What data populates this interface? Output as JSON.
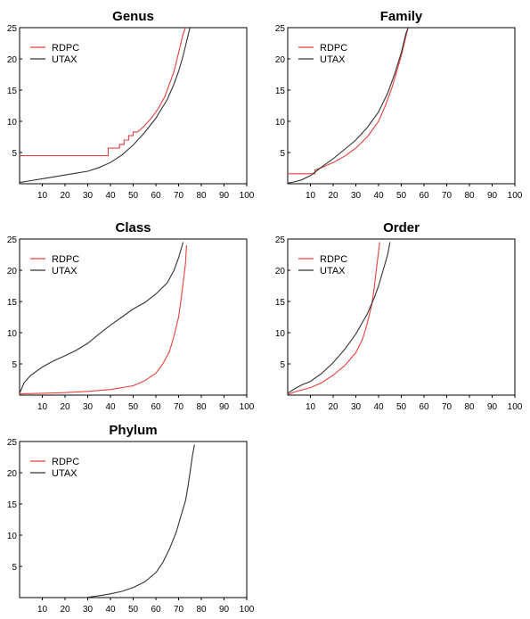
{
  "chart_data": [
    {
      "type": "line",
      "title": "Genus",
      "xlim": [
        0,
        100
      ],
      "ylim": [
        0,
        25
      ],
      "xticks": [
        "10",
        "20",
        "30",
        "40",
        "50",
        "60",
        "70",
        "80",
        "90",
        "100"
      ],
      "yticks": [
        "5",
        "10",
        "15",
        "20",
        "25"
      ],
      "legend": {
        "placement": "top-left",
        "entries": [
          "RDPC",
          "UTAX"
        ]
      },
      "series": [
        {
          "name": "RDPC",
          "color": "#e8403c",
          "step": true,
          "points": [
            [
              0,
              4.5
            ],
            [
              39,
              4.5
            ],
            [
              39,
              5.7
            ],
            [
              44,
              5.7
            ],
            [
              44,
              6.3
            ],
            [
              46,
              6.3
            ],
            [
              46,
              7
            ],
            [
              48,
              7
            ],
            [
              48,
              7.7
            ],
            [
              50,
              7.7
            ],
            [
              50,
              8.3
            ],
            [
              52,
              8.3
            ],
            [
              55,
              9.3
            ],
            [
              58,
              10.5
            ],
            [
              61,
              12
            ],
            [
              64,
              14
            ],
            [
              66,
              16
            ],
            [
              68,
              18
            ],
            [
              70,
              21
            ],
            [
              72,
              24
            ],
            [
              73,
              25
            ]
          ]
        },
        {
          "name": "UTAX",
          "color": "#333333",
          "step": false,
          "points": [
            [
              0,
              0.2
            ],
            [
              5,
              0.5
            ],
            [
              10,
              0.8
            ],
            [
              15,
              1.1
            ],
            [
              20,
              1.4
            ],
            [
              25,
              1.7
            ],
            [
              30,
              2
            ],
            [
              35,
              2.6
            ],
            [
              40,
              3.4
            ],
            [
              45,
              4.6
            ],
            [
              50,
              6.2
            ],
            [
              55,
              8.2
            ],
            [
              60,
              10.5
            ],
            [
              65,
              13.5
            ],
            [
              68,
              16
            ],
            [
              70,
              18
            ],
            [
              72,
              20.5
            ],
            [
              74,
              23.5
            ],
            [
              75,
              25
            ]
          ]
        }
      ]
    },
    {
      "type": "line",
      "title": "Family",
      "xlim": [
        0,
        100
      ],
      "ylim": [
        0,
        25
      ],
      "xticks": [
        "10",
        "20",
        "30",
        "40",
        "50",
        "60",
        "70",
        "80",
        "90",
        "100"
      ],
      "yticks": [
        "5",
        "10",
        "15",
        "20",
        "25"
      ],
      "legend": {
        "placement": "top-left",
        "entries": [
          "RDPC",
          "UTAX"
        ]
      },
      "series": [
        {
          "name": "RDPC",
          "color": "#e8403c",
          "step": true,
          "points": [
            [
              0,
              1.6
            ],
            [
              12,
              1.6
            ],
            [
              12,
              2.2
            ],
            [
              15,
              2.6
            ],
            [
              20,
              3.4
            ],
            [
              25,
              4.4
            ],
            [
              30,
              5.7
            ],
            [
              35,
              7.5
            ],
            [
              40,
              10
            ],
            [
              43,
              12.5
            ],
            [
              46,
              15.5
            ],
            [
              48,
              18
            ],
            [
              50,
              20.5
            ],
            [
              52,
              23.5
            ],
            [
              53,
              25
            ]
          ]
        },
        {
          "name": "UTAX",
          "color": "#333333",
          "step": false,
          "points": [
            [
              0,
              0.1
            ],
            [
              3,
              0.3
            ],
            [
              6,
              0.6
            ],
            [
              10,
              1.3
            ],
            [
              15,
              2.7
            ],
            [
              20,
              4
            ],
            [
              25,
              5.5
            ],
            [
              30,
              7
            ],
            [
              35,
              9
            ],
            [
              40,
              11.5
            ],
            [
              44,
              14.5
            ],
            [
              47,
              17.5
            ],
            [
              50,
              21
            ],
            [
              52,
              24
            ],
            [
              53,
              25
            ]
          ]
        }
      ]
    },
    {
      "type": "line",
      "title": "Class",
      "xlim": [
        0,
        100
      ],
      "ylim": [
        0,
        25
      ],
      "xticks": [
        "10",
        "20",
        "30",
        "40",
        "50",
        "60",
        "70",
        "80",
        "90",
        "100"
      ],
      "yticks": [
        "5",
        "10",
        "15",
        "20",
        "25"
      ],
      "legend": {
        "placement": "top-left",
        "entries": [
          "RDPC",
          "UTAX"
        ]
      },
      "series": [
        {
          "name": "RDPC",
          "color": "#e8403c",
          "step": false,
          "points": [
            [
              0,
              0.2
            ],
            [
              10,
              0.3
            ],
            [
              20,
              0.4
            ],
            [
              30,
              0.6
            ],
            [
              40,
              0.9
            ],
            [
              50,
              1.5
            ],
            [
              55,
              2.3
            ],
            [
              60,
              3.5
            ],
            [
              63,
              5
            ],
            [
              66,
              7
            ],
            [
              68,
              9.5
            ],
            [
              70,
              12.5
            ],
            [
              71,
              15
            ],
            [
              72,
              18
            ],
            [
              73,
              21
            ],
            [
              73.5,
              24
            ]
          ]
        },
        {
          "name": "UTAX",
          "color": "#333333",
          "step": false,
          "points": [
            [
              0,
              0.3
            ],
            [
              2,
              2
            ],
            [
              5,
              3.2
            ],
            [
              10,
              4.5
            ],
            [
              15,
              5.5
            ],
            [
              20,
              6.3
            ],
            [
              25,
              7.2
            ],
            [
              30,
              8.3
            ],
            [
              35,
              9.8
            ],
            [
              40,
              11.2
            ],
            [
              45,
              12.5
            ],
            [
              50,
              13.8
            ],
            [
              55,
              14.8
            ],
            [
              60,
              16.2
            ],
            [
              65,
              18
            ],
            [
              68,
              20
            ],
            [
              70,
              22
            ],
            [
              72,
              24.5
            ]
          ]
        }
      ]
    },
    {
      "type": "line",
      "title": "Order",
      "xlim": [
        0,
        100
      ],
      "ylim": [
        0,
        25
      ],
      "xticks": [
        "10",
        "20",
        "30",
        "40",
        "50",
        "60",
        "70",
        "80",
        "90",
        "100"
      ],
      "yticks": [
        "5",
        "10",
        "15",
        "20",
        "25"
      ],
      "legend": {
        "placement": "top-left",
        "entries": [
          "RDPC",
          "UTAX"
        ]
      },
      "series": [
        {
          "name": "RDPC",
          "color": "#e8403c",
          "step": false,
          "points": [
            [
              0,
              0.1
            ],
            [
              3,
              0.5
            ],
            [
              6,
              0.8
            ],
            [
              10,
              1.2
            ],
            [
              15,
              2
            ],
            [
              20,
              3.2
            ],
            [
              25,
              4.7
            ],
            [
              30,
              6.8
            ],
            [
              33,
              9
            ],
            [
              35,
              11.5
            ],
            [
              37,
              14.5
            ],
            [
              38,
              17
            ],
            [
              39,
              20
            ],
            [
              40,
              23
            ],
            [
              40.5,
              24.5
            ]
          ]
        },
        {
          "name": "UTAX",
          "color": "#333333",
          "step": false,
          "points": [
            [
              0,
              0.3
            ],
            [
              3,
              1
            ],
            [
              6,
              1.6
            ],
            [
              10,
              2.2
            ],
            [
              15,
              3.5
            ],
            [
              20,
              5.2
            ],
            [
              25,
              7.3
            ],
            [
              30,
              9.8
            ],
            [
              35,
              13
            ],
            [
              38,
              15.5
            ],
            [
              40,
              17.5
            ],
            [
              42,
              20
            ],
            [
              44,
              22.5
            ],
            [
              45,
              24.5
            ]
          ]
        }
      ]
    },
    {
      "type": "line",
      "title": "Phylum",
      "xlim": [
        0,
        100
      ],
      "ylim": [
        0,
        25
      ],
      "xticks": [
        "10",
        "20",
        "30",
        "40",
        "50",
        "60",
        "70",
        "80",
        "90",
        "100"
      ],
      "yticks": [
        "5",
        "10",
        "15",
        "20",
        "25"
      ],
      "legend": {
        "placement": "top-left",
        "entries": [
          "RDPC",
          "UTAX"
        ]
      },
      "series": [
        {
          "name": "RDPC",
          "color": "#e8403c",
          "step": false,
          "points": []
        },
        {
          "name": "UTAX",
          "color": "#333333",
          "step": false,
          "points": [
            [
              29,
              0
            ],
            [
              35,
              0.3
            ],
            [
              40,
              0.6
            ],
            [
              45,
              1
            ],
            [
              50,
              1.6
            ],
            [
              55,
              2.5
            ],
            [
              60,
              4
            ],
            [
              63,
              5.6
            ],
            [
              66,
              7.8
            ],
            [
              69,
              10.5
            ],
            [
              71,
              13
            ],
            [
              73,
              15.5
            ],
            [
              74,
              17.5
            ],
            [
              75,
              20
            ],
            [
              76,
              22.5
            ],
            [
              77,
              24.5
            ]
          ]
        }
      ]
    }
  ]
}
